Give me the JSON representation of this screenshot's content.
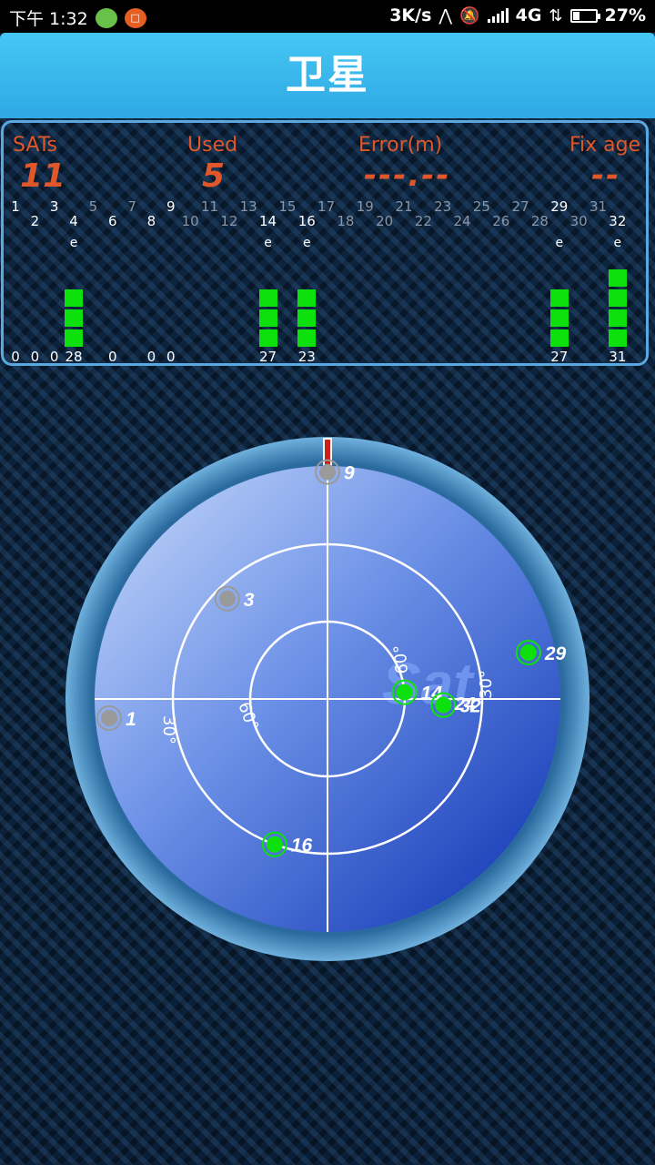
{
  "status_bar": {
    "time": "下午 1:32",
    "network_speed": "3K/s",
    "network_type": "4G",
    "battery": "27%",
    "icons": [
      "wechat-icon",
      "app-icon",
      "location-icon",
      "mute-icon",
      "signal-icon",
      "data-arrows-icon",
      "battery-icon"
    ]
  },
  "title": "卫星",
  "stats": {
    "sats_label": "SATs",
    "sats_value": "11",
    "used_label": "Used",
    "used_value": "5",
    "error_label": "Error(m)",
    "error_value": "---.--",
    "fix_label": "Fix age",
    "fix_value": "--"
  },
  "colors": {
    "accent_orange": "#e0572a",
    "used_green": "#0ee00e",
    "unused_gray": "#9a9a9a",
    "title_blue": "#2fa8e4",
    "panel_border": "#5aa8e0"
  },
  "satellites": [
    {
      "prn": 1,
      "snr": 0,
      "segments": 0,
      "ephemeris": false,
      "used": false,
      "azimuth": 265,
      "elevation": 5
    },
    {
      "prn": 2,
      "snr": 0,
      "segments": 0,
      "ephemeris": false,
      "used": false
    },
    {
      "prn": 3,
      "snr": 0,
      "segments": 0,
      "ephemeris": false,
      "used": false,
      "azimuth": 315,
      "elevation": 35
    },
    {
      "prn": 4,
      "snr": 28,
      "segments": 3,
      "ephemeris": true,
      "used": true
    },
    {
      "prn": 6,
      "snr": 0,
      "segments": 0,
      "ephemeris": false,
      "used": false
    },
    {
      "prn": 8,
      "snr": 0,
      "segments": 0,
      "ephemeris": false,
      "used": false
    },
    {
      "prn": 9,
      "snr": 0,
      "segments": 0,
      "ephemeris": false,
      "used": false,
      "azimuth": 0,
      "elevation": 2
    },
    {
      "prn": 14,
      "snr": 27,
      "segments": 3,
      "ephemeris": true,
      "used": true,
      "azimuth": 85,
      "elevation": 60
    },
    {
      "prn": 16,
      "snr": 23,
      "segments": 3,
      "ephemeris": true,
      "used": true,
      "azimuth": 200,
      "elevation": 30
    },
    {
      "prn": 29,
      "snr": 27,
      "segments": 3,
      "ephemeris": true,
      "used": true,
      "azimuth": 77,
      "elevation": 10
    },
    {
      "prn": 32,
      "snr": 31,
      "segments": 4,
      "ephemeris": true,
      "used": true,
      "azimuth": 93,
      "elevation": 45
    }
  ],
  "prn_row_odd": [
    "1",
    "3",
    "5",
    "7",
    "9",
    "11",
    "13",
    "15",
    "17",
    "19",
    "21",
    "23",
    "25",
    "27",
    "29",
    "31"
  ],
  "prn_row_even": [
    "2",
    "4",
    "6",
    "8",
    "10",
    "12",
    "14",
    "16",
    "18",
    "20",
    "22",
    "24",
    "26",
    "28",
    "30",
    "32"
  ],
  "sky_labels": {
    "outer_left": "30°",
    "inner_left": "60°",
    "inner_right": "60°",
    "outer_right": "30°",
    "watermark": "Sat",
    "overlap_label": "24"
  }
}
